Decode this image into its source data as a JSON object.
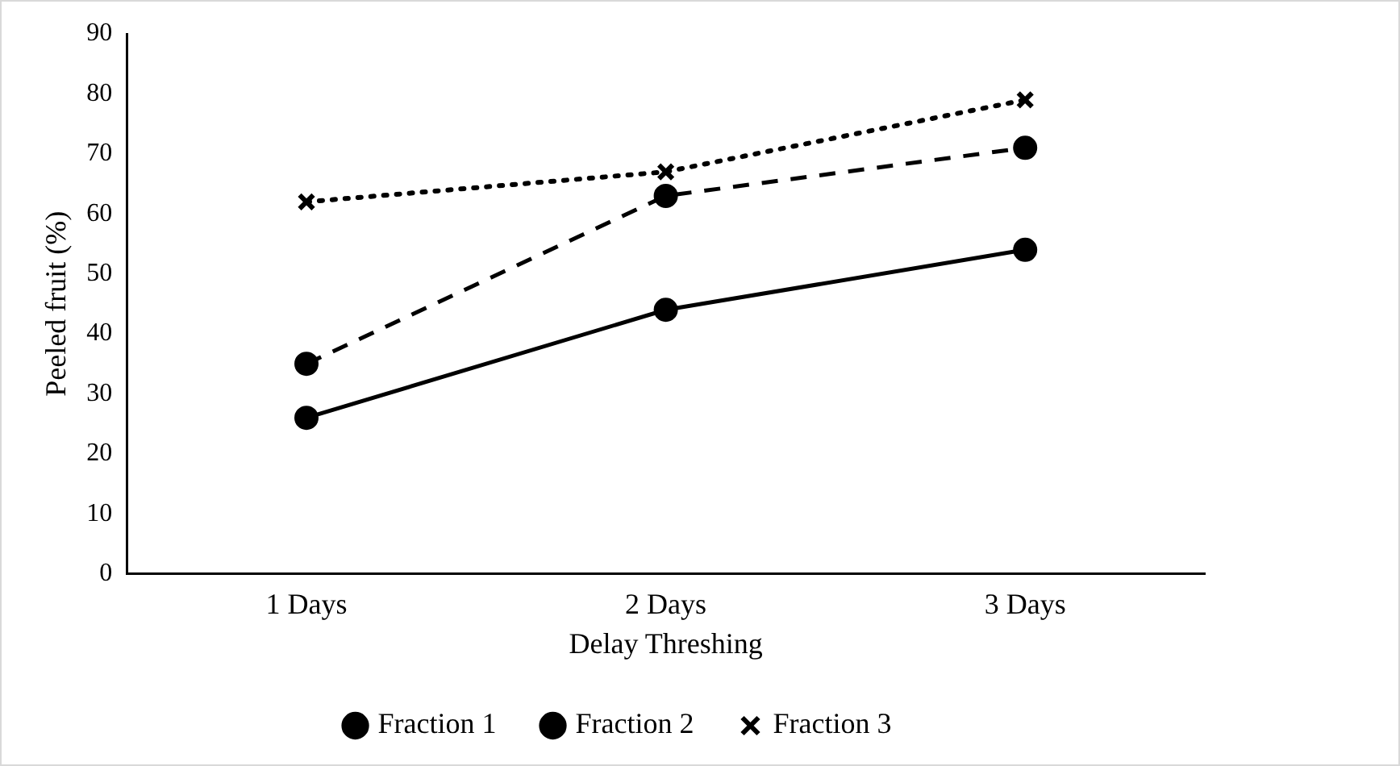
{
  "chart_data": {
    "type": "line",
    "xlabel": "Delay Threshing",
    "ylabel": "Peeled fruit (%)",
    "categories": [
      "1 Days",
      "2 Days",
      "3 Days"
    ],
    "series": [
      {
        "name": "Fraction 1",
        "color": "#000000",
        "values": [
          26,
          44,
          54
        ],
        "marker": "circle",
        "line_style": "solid"
      },
      {
        "name": "Fraction 2",
        "color": "#000000",
        "values": [
          35,
          63,
          71
        ],
        "marker": "circle",
        "line_style": "dashed"
      },
      {
        "name": "Fraction 3",
        "color": "#000000",
        "values": [
          62,
          67,
          79
        ],
        "marker": "cross",
        "line_style": "dotted"
      }
    ],
    "ylim": [
      0,
      90
    ],
    "yticks": [
      0,
      10,
      20,
      30,
      40,
      50,
      60,
      70,
      80,
      90
    ],
    "grid": false,
    "legend": "bottom"
  }
}
